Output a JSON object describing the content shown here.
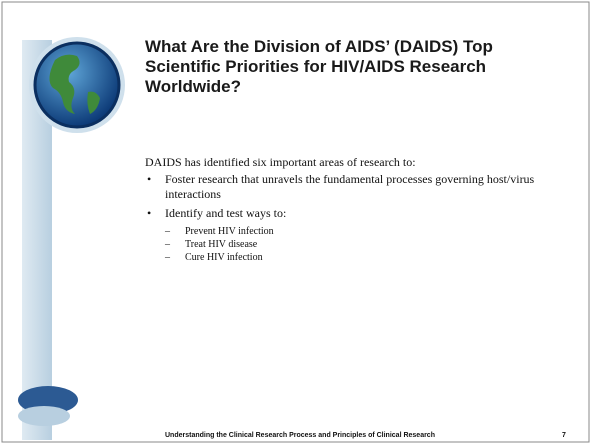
{
  "slide": {
    "title": "What Are the Division of AIDS’ (DAIDS) Top Scientific Priorities for HIV/AIDS Research Worldwide?",
    "intro": "DAIDS has identified six important areas of research to:",
    "bullets": [
      {
        "text": "Foster research that unravels the fundamental processes governing host/virus interactions",
        "sub": []
      },
      {
        "text": "Identify and test ways to:",
        "sub": [
          "Prevent HIV infection",
          "Treat HIV disease",
          "Cure HIV infection"
        ]
      }
    ],
    "footer": "Understanding the Clinical Research Process and Principles of Clinical Research",
    "page_number": "7"
  }
}
